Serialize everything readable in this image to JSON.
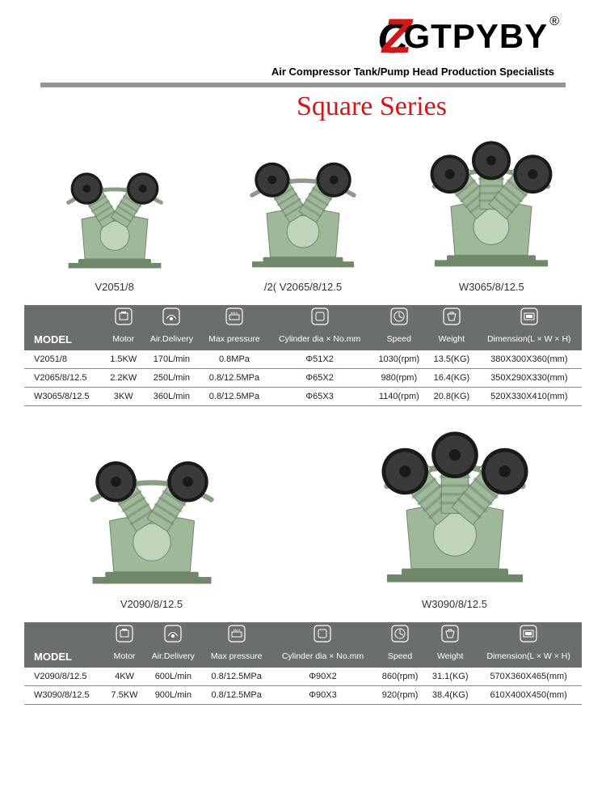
{
  "brand": {
    "z_letter": "Z",
    "rest": "GTPYBY",
    "reg": "®",
    "tagline": "Air Compressor Tank/Pump Head Production Specialists"
  },
  "series_title": "Square Series",
  "products_row1": [
    {
      "label": "V2051/8",
      "cylinders": 2,
      "scale": 0.82
    },
    {
      "label": "/2( V2065/8/12.5",
      "cylinders": 2,
      "scale": 0.9
    },
    {
      "label": "W3065/8/12.5",
      "cylinders": 3,
      "scale": 1.0
    }
  ],
  "products_row2": [
    {
      "label": "V2090/8/12.5",
      "cylinders": 2,
      "scale": 1.05
    },
    {
      "label": "W3090/8/12.5",
      "cylinders": 3,
      "scale": 1.2
    }
  ],
  "table_headers": {
    "model": "MODEL",
    "cols": [
      "Motor",
      "Air.Delivery",
      "Max pressure",
      "Cylinder dia × No.mm",
      "Speed",
      "Weight",
      "Dimension(L × W × H)"
    ]
  },
  "table1_rows": [
    [
      "V2051/8",
      "1.5KW",
      "170L/min",
      "0.8MPa",
      "Φ51X2",
      "1030(rpm)",
      "13.5(KG)",
      "380X300X360(mm)"
    ],
    [
      "V2065/8/12.5",
      "2.2KW",
      "250L/min",
      "0.8/12.5MPa",
      "Φ65X2",
      "980(rpm)",
      "16.4(KG)",
      "350X290X330(mm)"
    ],
    [
      "W3065/8/12.5",
      "3KW",
      "360L/min",
      "0.8/12.5MPa",
      "Φ65X3",
      "1140(rpm)",
      "20.8(KG)",
      "520X330X410(mm)"
    ]
  ],
  "table2_rows": [
    [
      "V2090/8/12.5",
      "4KW",
      "600L/min",
      "0.8/12.5MPa",
      "Φ90X2",
      "860(rpm)",
      "31.1(KG)",
      "570X360X465(mm)"
    ],
    [
      "W3090/8/12.5",
      "7.5KW",
      "900L/min",
      "0.8/12.5MPa",
      "Φ90X3",
      "920(rpm)",
      "38.4(KG)",
      "610X400X450(mm)"
    ]
  ],
  "colors": {
    "brand_red": "#d01818",
    "table_header_bg": "#6b6e6f",
    "hr_gray": "#949494",
    "pump_body": "#9fb89a",
    "pump_body_light": "#c0d4bb",
    "pump_body_dark": "#6e8869",
    "wheel_dark": "#1a1a1a",
    "wheel_mid": "#3a3a3a",
    "pipe": "#8a9d85"
  }
}
